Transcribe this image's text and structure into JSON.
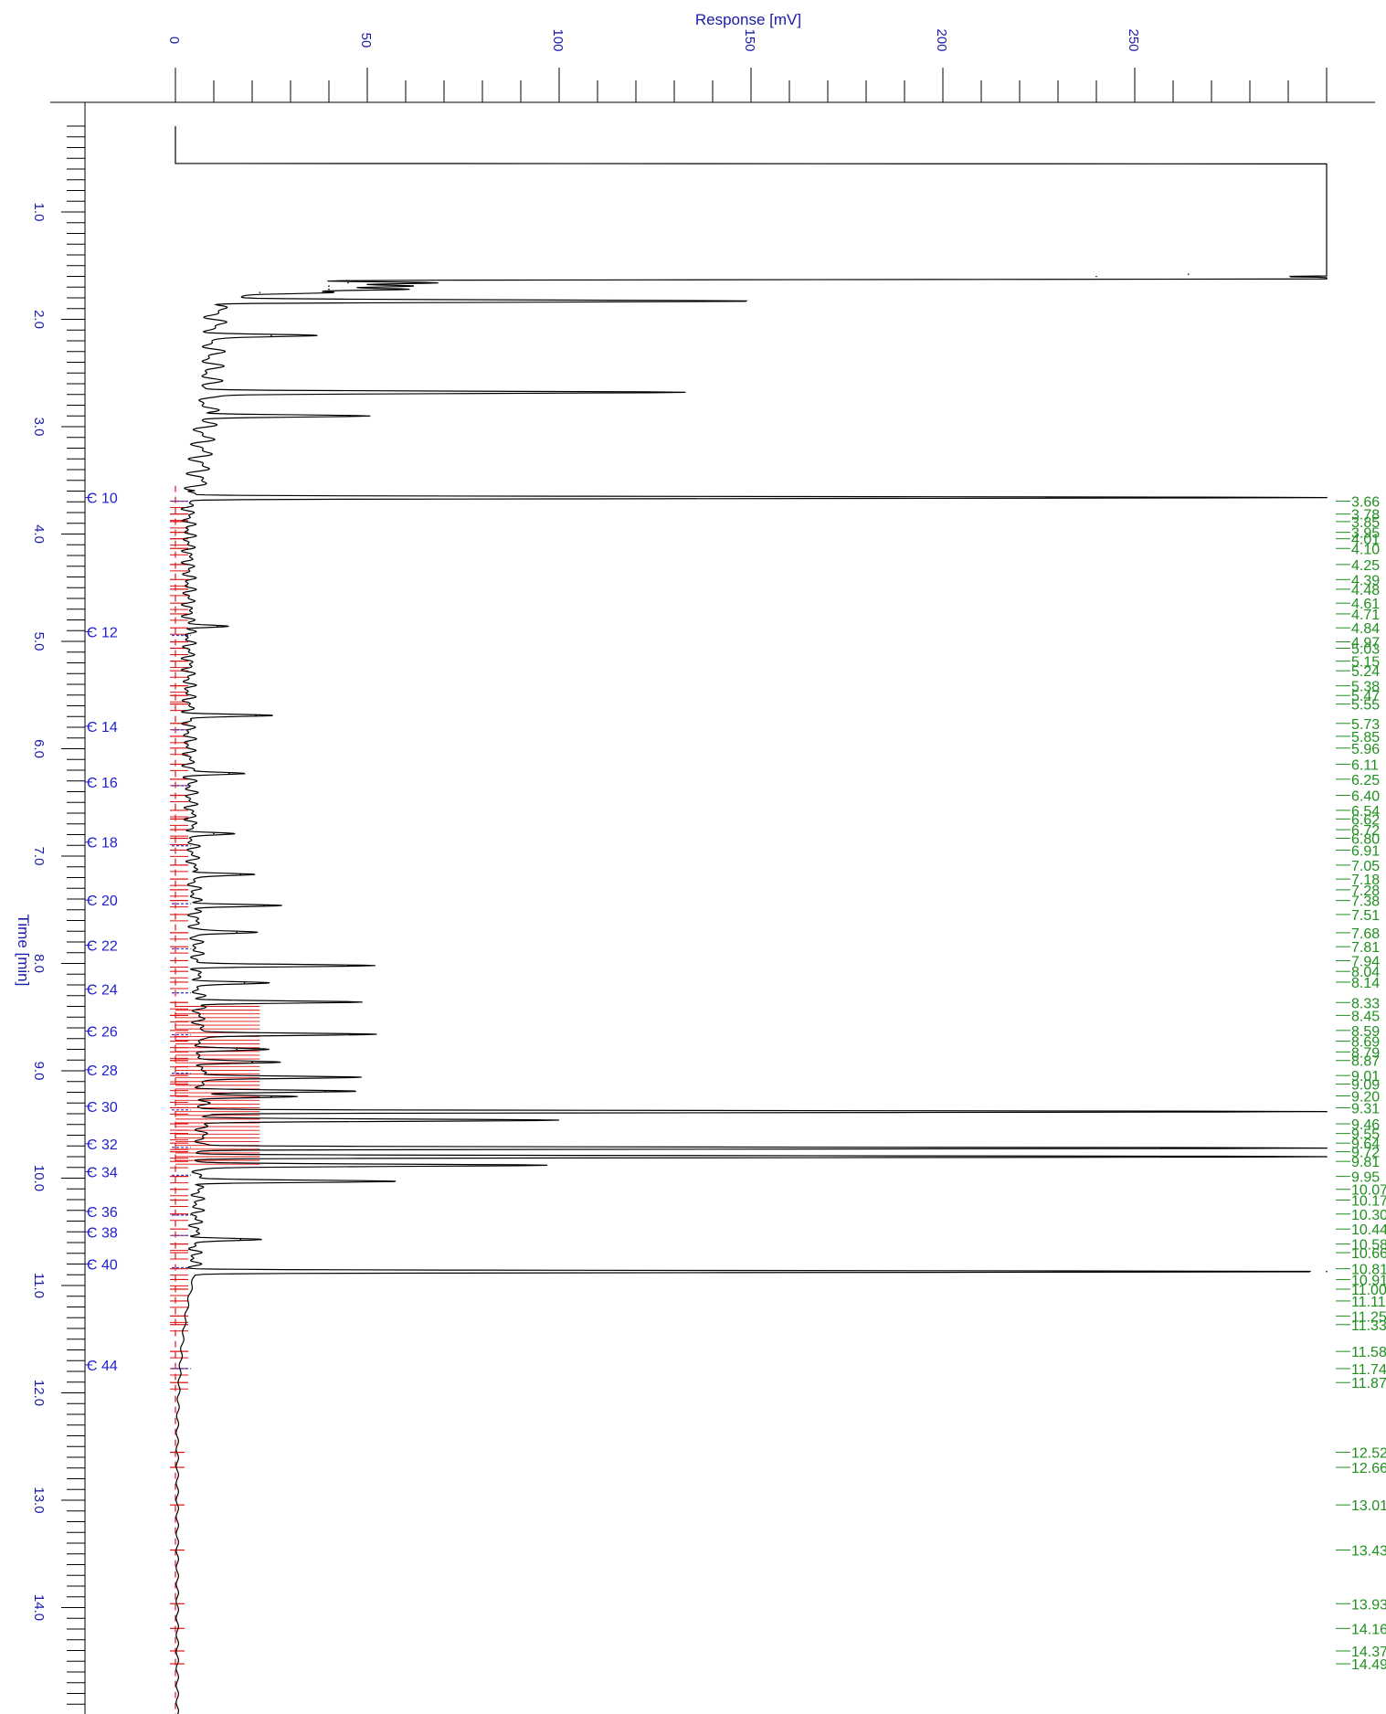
{
  "chart_data": {
    "type": "line",
    "title": "",
    "xlabel": "Response [mV]",
    "ylabel": "Time [min]",
    "xlim": [
      0,
      300
    ],
    "ylim": [
      0.2,
      15.2
    ],
    "x_ticks": [
      {
        "value": 0,
        "label": "0"
      },
      {
        "value": 50,
        "label": "50"
      },
      {
        "value": 100,
        "label": "100"
      },
      {
        "value": 150,
        "label": "150"
      },
      {
        "value": 200,
        "label": "200"
      },
      {
        "value": 250,
        "label": "250"
      }
    ],
    "y_ticks": [
      {
        "value": 1.0,
        "label": "1.0"
      },
      {
        "value": 2.0,
        "label": "2.0"
      },
      {
        "value": 3.0,
        "label": "3.0"
      },
      {
        "value": 4.0,
        "label": "4.0"
      },
      {
        "value": 5.0,
        "label": "5.0"
      },
      {
        "value": 6.0,
        "label": "6.0"
      },
      {
        "value": 7.0,
        "label": "7.0"
      },
      {
        "value": 8.0,
        "label": "8.0"
      },
      {
        "value": 9.0,
        "label": "9.0"
      },
      {
        "value": 10.0,
        "label": "10.0"
      },
      {
        "value": 11.0,
        "label": "11.0"
      },
      {
        "value": 12.0,
        "label": "12.0"
      },
      {
        "value": 13.0,
        "label": "13.0"
      },
      {
        "value": 14.0,
        "label": "14.0"
      }
    ],
    "grid": false,
    "legend": "none",
    "colors": {
      "trace": "#000000",
      "carbon_labels": "#2020d0",
      "peak_labels": "#1f8f1f",
      "markers": "#e01010",
      "axis_text": "#1a1aa8"
    },
    "carbon_markers": [
      {
        "label": "C 10",
        "t": 3.66
      },
      {
        "label": "C 12",
        "t": 4.91
      },
      {
        "label": "C 14",
        "t": 5.79
      },
      {
        "label": "C 16",
        "t": 6.31
      },
      {
        "label": "C 18",
        "t": 6.87
      },
      {
        "label": "C 20",
        "t": 7.41
      },
      {
        "label": "C 22",
        "t": 7.83
      },
      {
        "label": "C 24",
        "t": 8.24
      },
      {
        "label": "C 26",
        "t": 8.63
      },
      {
        "label": "C 28",
        "t": 8.99
      },
      {
        "label": "C 30",
        "t": 9.33
      },
      {
        "label": "C 32",
        "t": 9.68
      },
      {
        "label": "C 34",
        "t": 9.94
      },
      {
        "label": "C 36",
        "t": 10.31
      },
      {
        "label": "C 38",
        "t": 10.5
      },
      {
        "label": "C 40",
        "t": 10.8
      },
      {
        "label": "C 44",
        "t": 11.74
      }
    ],
    "peak_labels": [
      "3.66",
      "3.78",
      "3.85",
      "3.95",
      "4.01",
      "4.10",
      "4.25",
      "4.39",
      "4.48",
      "4.61",
      "4.71",
      "4.84",
      "4.97",
      "5.03",
      "5.15",
      "5.24",
      "5.38",
      "5.47",
      "5.55",
      "5.73",
      "5.85",
      "5.96",
      "6.11",
      "6.25",
      "6.40",
      "6.54",
      "6.62",
      "6.72",
      "6.80",
      "6.91",
      "7.05",
      "7.18",
      "7.28",
      "7.38",
      "7.51",
      "7.68",
      "7.81",
      "7.94",
      "8.04",
      "8.14",
      "8.33",
      "8.45",
      "8.59",
      "8.69",
      "8.79",
      "8.87",
      "9.01",
      "9.09",
      "9.20",
      "9.31",
      "9.46",
      "9.55",
      "9.64",
      "9.72",
      "9.81",
      "9.95",
      "10.07",
      "10.17",
      "10.30",
      "10.44",
      "10.58",
      "10.66",
      "10.81",
      "10.91",
      "11.00",
      "11.11",
      "11.25",
      "11.33",
      "11.58",
      "11.74",
      "11.87",
      "12.52",
      "12.66",
      "13.01",
      "13.43",
      "13.93",
      "14.16",
      "14.37",
      "14.49"
    ],
    "peaks": [
      {
        "t": 1.58,
        "v": 264
      },
      {
        "t": 1.6,
        "v": 240
      },
      {
        "t": 1.62,
        "v": 300
      },
      {
        "t": 1.66,
        "v": 45
      },
      {
        "t": 1.69,
        "v": 40
      },
      {
        "t": 1.72,
        "v": 40
      },
      {
        "t": 1.75,
        "v": 22
      },
      {
        "t": 1.83,
        "v": 136
      },
      {
        "t": 2.15,
        "v": 25
      },
      {
        "t": 2.68,
        "v": 125
      },
      {
        "t": 2.9,
        "v": 45
      },
      {
        "t": 3.66,
        "v": 300
      },
      {
        "t": 4.86,
        "v": 11
      },
      {
        "t": 5.69,
        "v": 21
      },
      {
        "t": 6.23,
        "v": 14
      },
      {
        "t": 6.79,
        "v": 10
      },
      {
        "t": 7.17,
        "v": 17
      },
      {
        "t": 7.46,
        "v": 23
      },
      {
        "t": 7.71,
        "v": 16
      },
      {
        "t": 8.02,
        "v": 45
      },
      {
        "t": 8.18,
        "v": 18
      },
      {
        "t": 8.36,
        "v": 43
      },
      {
        "t": 8.66,
        "v": 48
      },
      {
        "t": 8.8,
        "v": 16
      },
      {
        "t": 8.92,
        "v": 20
      },
      {
        "t": 9.06,
        "v": 43
      },
      {
        "t": 9.19,
        "v": 39
      },
      {
        "t": 9.24,
        "v": 25
      },
      {
        "t": 9.38,
        "v": 300
      },
      {
        "t": 9.46,
        "v": 93
      },
      {
        "t": 9.72,
        "v": 300
      },
      {
        "t": 9.8,
        "v": 300
      },
      {
        "t": 9.88,
        "v": 91
      },
      {
        "t": 10.03,
        "v": 52
      },
      {
        "t": 10.57,
        "v": 17
      },
      {
        "t": 10.87,
        "v": 300
      }
    ]
  }
}
